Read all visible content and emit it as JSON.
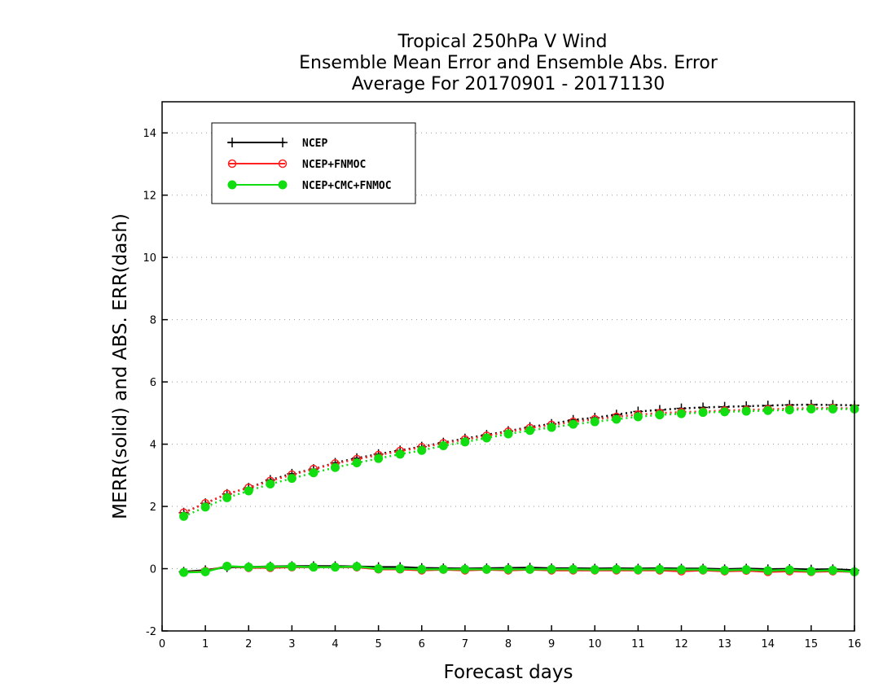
{
  "chart_data": {
    "type": "line",
    "title_lines": [
      "Tropical 250hPa V Wind",
      "Ensemble Mean Error and Ensemble Abs. Error",
      "Average For 20170901 - 20171130"
    ],
    "xlabel": "Forecast days",
    "ylabel": "MERR(solid) and ABS. ERR(dash)",
    "xlim": [
      0,
      16
    ],
    "ylim": [
      -2,
      15
    ],
    "xticks": [
      0,
      1,
      2,
      3,
      4,
      5,
      6,
      7,
      8,
      9,
      10,
      11,
      12,
      13,
      14,
      15,
      16
    ],
    "yticks": [
      -2,
      0,
      2,
      4,
      6,
      8,
      10,
      12,
      14
    ],
    "grid": "horizontal dotted",
    "legend_position": "top-left",
    "x": [
      0.5,
      1.0,
      1.5,
      2.0,
      2.5,
      3.0,
      3.5,
      4.0,
      4.5,
      5.0,
      5.5,
      6.0,
      6.5,
      7.0,
      7.5,
      8.0,
      8.5,
      9.0,
      9.5,
      10.0,
      10.5,
      11.0,
      11.5,
      12.0,
      12.5,
      13.0,
      13.5,
      14.0,
      14.5,
      15.0,
      15.5,
      16.0
    ],
    "series": [
      {
        "name": "NCEP",
        "color": "#000000",
        "marker": "plus",
        "merr": [
          -0.1,
          -0.05,
          0.05,
          0.05,
          0.07,
          0.08,
          0.08,
          0.08,
          0.07,
          0.05,
          0.05,
          0.02,
          0.01,
          0.0,
          0.01,
          0.02,
          0.03,
          0.01,
          0.01,
          0.0,
          0.01,
          0.0,
          0.01,
          0.0,
          0.0,
          -0.02,
          0.0,
          -0.02,
          -0.01,
          -0.03,
          -0.02,
          -0.05
        ],
        "abs_err": [
          1.8,
          2.1,
          2.4,
          2.6,
          2.85,
          3.05,
          3.2,
          3.4,
          3.55,
          3.68,
          3.8,
          3.92,
          4.05,
          4.18,
          4.3,
          4.42,
          4.55,
          4.65,
          4.78,
          4.85,
          4.95,
          5.05,
          5.1,
          5.15,
          5.18,
          5.2,
          5.22,
          5.24,
          5.26,
          5.27,
          5.26,
          5.25
        ]
      },
      {
        "name": "NCEP+FNMOC",
        "color": "#ff2020",
        "marker": "open-circle",
        "merr": [
          -0.12,
          -0.08,
          0.08,
          0.03,
          0.03,
          0.05,
          0.05,
          0.05,
          0.05,
          -0.02,
          -0.02,
          -0.05,
          -0.03,
          -0.05,
          -0.03,
          -0.05,
          -0.03,
          -0.05,
          -0.05,
          -0.05,
          -0.05,
          -0.05,
          -0.05,
          -0.08,
          -0.05,
          -0.08,
          -0.06,
          -0.1,
          -0.08,
          -0.1,
          -0.08,
          -0.1
        ],
        "abs_err": [
          1.8,
          2.1,
          2.4,
          2.6,
          2.82,
          3.02,
          3.2,
          3.38,
          3.52,
          3.65,
          3.78,
          3.9,
          4.03,
          4.15,
          4.27,
          4.4,
          4.52,
          4.62,
          4.72,
          4.8,
          4.88,
          4.95,
          5.0,
          5.03,
          5.05,
          5.08,
          5.1,
          5.12,
          5.14,
          5.16,
          5.16,
          5.15
        ]
      },
      {
        "name": "NCEP+CMC+FNMOC",
        "color": "#11dd11",
        "marker": "filled-circle",
        "merr": [
          -0.12,
          -0.1,
          0.08,
          0.05,
          0.06,
          0.07,
          0.05,
          0.05,
          0.07,
          0.0,
          0.0,
          -0.02,
          -0.02,
          -0.02,
          -0.02,
          -0.02,
          -0.02,
          -0.02,
          -0.02,
          -0.03,
          -0.02,
          -0.03,
          -0.02,
          -0.03,
          -0.03,
          -0.05,
          -0.03,
          -0.06,
          -0.04,
          -0.08,
          -0.05,
          -0.1
        ],
        "abs_err": [
          1.68,
          1.98,
          2.28,
          2.5,
          2.72,
          2.9,
          3.08,
          3.25,
          3.4,
          3.54,
          3.68,
          3.8,
          3.95,
          4.07,
          4.2,
          4.33,
          4.44,
          4.54,
          4.64,
          4.72,
          4.8,
          4.88,
          4.94,
          4.98,
          5.02,
          5.04,
          5.06,
          5.08,
          5.1,
          5.13,
          5.13,
          5.13
        ]
      }
    ]
  }
}
